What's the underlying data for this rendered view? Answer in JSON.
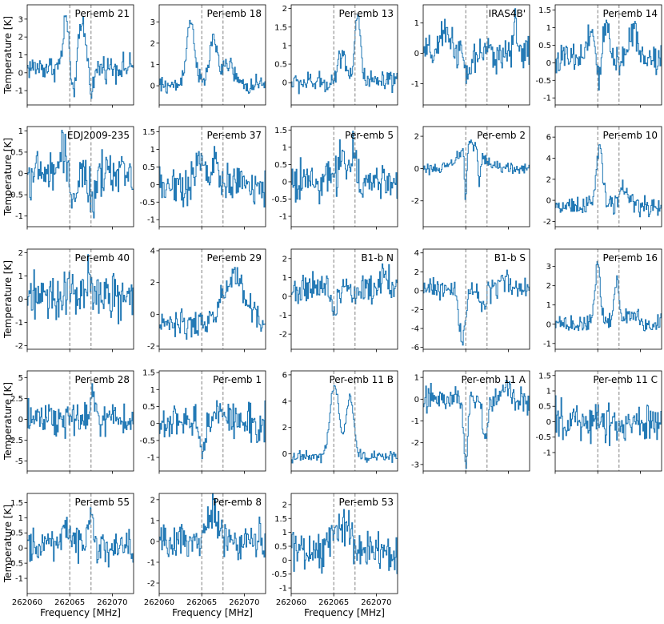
{
  "figure": {
    "xlabel": "Frequency [MHz]",
    "ylabel": "Temperature [K]",
    "line_color": "#1f77b4",
    "marker_color": "#808080"
  },
  "chart_data": [
    {
      "type": "line",
      "title": "Per-emb 21",
      "xlim": [
        262060,
        262072.5
      ],
      "ylim": [
        -1.8,
        3.8
      ],
      "yticks": [
        -1,
        0,
        1,
        2,
        3
      ],
      "markers": [
        262065,
        262067.5
      ],
      "profile": {
        "base": 0.3,
        "noise": 0.5,
        "features": [
          {
            "c": 262064.6,
            "w": 0.35,
            "a": 2.8
          },
          {
            "c": 262065.3,
            "w": 0.25,
            "a": -2.0
          },
          {
            "c": 262066.5,
            "w": 0.4,
            "a": 2.4
          },
          {
            "c": 262067.6,
            "w": 0.3,
            "a": -1.2
          }
        ]
      }
    },
    {
      "type": "line",
      "title": "Per-emb 18",
      "xlim": [
        262060,
        262072.5
      ],
      "ylim": [
        -0.9,
        3.8
      ],
      "yticks": [
        0,
        1,
        2,
        3
      ],
      "markers": [
        262065,
        262067.5
      ],
      "profile": {
        "base": 0.0,
        "noise": 0.3,
        "features": [
          {
            "c": 262063.7,
            "w": 0.5,
            "a": 3.0
          },
          {
            "c": 262066.4,
            "w": 0.5,
            "a": 2.2
          },
          {
            "c": 262068.2,
            "w": 0.6,
            "a": 1.0
          }
        ]
      }
    },
    {
      "type": "line",
      "title": "Per-emb 13",
      "xlim": [
        262060,
        262072.5
      ],
      "ylim": [
        -0.6,
        2.1
      ],
      "yticks": [
        0,
        0.5,
        1,
        1.5,
        2
      ],
      "markers": [
        262065,
        262067.5
      ],
      "profile": {
        "base": 0.0,
        "noise": 0.2,
        "features": [
          {
            "c": 262066.0,
            "w": 0.5,
            "a": 0.8
          },
          {
            "c": 262067.8,
            "w": 0.35,
            "a": 1.8
          }
        ]
      }
    },
    {
      "type": "line",
      "title": "IRAS4B'",
      "xlim": [
        262060,
        262072.5
      ],
      "ylim": [
        -1.7,
        1.6
      ],
      "yticks": [
        -1,
        0,
        1
      ],
      "markers": [
        262065,
        262067.5
      ],
      "profile": {
        "base": 0.0,
        "noise": 0.4,
        "features": [
          {
            "c": 262062.8,
            "w": 0.6,
            "a": 0.7
          },
          {
            "c": 262065.3,
            "w": 0.4,
            "a": -0.8
          },
          {
            "c": 262070.9,
            "w": 0.2,
            "a": 1.2
          }
        ]
      }
    },
    {
      "type": "line",
      "title": "Per-emb 14",
      "xlim": [
        262060,
        262072.5
      ],
      "ylim": [
        -1.2,
        1.65
      ],
      "yticks": [
        -1,
        -0.5,
        0,
        0.5,
        1,
        1.5
      ],
      "markers": [
        262065,
        262067.5
      ],
      "profile": {
        "base": 0.1,
        "noise": 0.35,
        "features": [
          {
            "c": 262064.4,
            "w": 0.4,
            "a": 0.8
          },
          {
            "c": 262065.1,
            "w": 0.2,
            "a": -1.0
          },
          {
            "c": 262066.0,
            "w": 0.4,
            "a": 0.9
          },
          {
            "c": 262069.2,
            "w": 0.5,
            "a": 0.9
          }
        ]
      }
    },
    {
      "type": "line",
      "title": "EDJ2009-235",
      "xlim": [
        262060,
        262072.5
      ],
      "ylim": [
        -1.25,
        1.1
      ],
      "yticks": [
        -1,
        -0.5,
        0,
        0.5,
        1
      ],
      "markers": [
        262065,
        262067.5
      ],
      "profile": {
        "base": 0.0,
        "noise": 0.35,
        "features": [
          {
            "c": 262064.3,
            "w": 0.4,
            "a": 0.6
          },
          {
            "c": 262065.4,
            "w": 0.4,
            "a": -0.6
          },
          {
            "c": 262067.7,
            "w": 0.5,
            "a": -0.6
          }
        ]
      }
    },
    {
      "type": "line",
      "title": "Per-emb 37",
      "xlim": [
        262060,
        262072.5
      ],
      "ylim": [
        -1.2,
        1.65
      ],
      "yticks": [
        -1,
        -0.5,
        0,
        0.5,
        1,
        1.5
      ],
      "markers": [
        262065,
        262067.5
      ],
      "profile": {
        "base": 0.0,
        "noise": 0.4,
        "features": [
          {
            "c": 262064.8,
            "w": 0.5,
            "a": 0.7
          },
          {
            "c": 262066.5,
            "w": 0.3,
            "a": 0.9
          }
        ]
      }
    },
    {
      "type": "line",
      "title": "Per-emb 5",
      "xlim": [
        262060,
        262072.5
      ],
      "ylim": [
        -1.3,
        1.6
      ],
      "yticks": [
        -1,
        -0.5,
        0,
        0.5,
        1,
        1.5
      ],
      "markers": [
        262065,
        262067.5
      ],
      "profile": {
        "base": 0.0,
        "noise": 0.4,
        "features": [
          {
            "c": 262066.0,
            "w": 0.5,
            "a": 0.8
          },
          {
            "c": 262067.3,
            "w": 0.3,
            "a": 0.9
          }
        ]
      }
    },
    {
      "type": "line",
      "title": "Per-emb 2",
      "xlim": [
        262060,
        262072.5
      ],
      "ylim": [
        -3.6,
        2.6
      ],
      "yticks": [
        -2,
        0,
        2
      ],
      "markers": [
        262065,
        262067.5
      ],
      "profile": {
        "base": 0.0,
        "noise": 0.25,
        "features": [
          {
            "c": 262065.6,
            "w": 1.2,
            "a": 1.6
          },
          {
            "c": 262065.0,
            "w": 0.12,
            "a": -3.5
          },
          {
            "c": 262066.6,
            "w": 0.15,
            "a": -2.2
          }
        ]
      }
    },
    {
      "type": "line",
      "title": "Per-emb 10",
      "xlim": [
        262060,
        262072.5
      ],
      "ylim": [
        -2.5,
        7.0
      ],
      "yticks": [
        -2,
        0,
        2,
        4,
        6
      ],
      "markers": [
        262065,
        262067.5
      ],
      "profile": {
        "base": -0.5,
        "noise": 0.6,
        "features": [
          {
            "c": 262065.2,
            "w": 0.35,
            "a": 5.5
          },
          {
            "c": 262068.0,
            "w": 0.6,
            "a": 1.4
          }
        ]
      }
    },
    {
      "type": "line",
      "title": "Per-emb 40",
      "xlim": [
        262060,
        262072.5
      ],
      "ylim": [
        -2.15,
        2.15
      ],
      "yticks": [
        -2,
        -1,
        0,
        1,
        2
      ],
      "markers": [
        262065,
        262067.5
      ],
      "profile": {
        "base": 0.0,
        "noise": 0.7,
        "features": [
          {
            "c": 262064.9,
            "w": 0.3,
            "a": 1.0
          },
          {
            "c": 262067.4,
            "w": 0.3,
            "a": 1.0
          }
        ]
      }
    },
    {
      "type": "line",
      "title": "Per-emb 29",
      "xlim": [
        262060,
        262072.5
      ],
      "ylim": [
        -2.2,
        4.1
      ],
      "yticks": [
        -2,
        0,
        2,
        4
      ],
      "markers": [
        262065,
        262067.5
      ],
      "profile": {
        "base": -0.6,
        "noise": 0.6,
        "features": [
          {
            "c": 262068.8,
            "w": 1.2,
            "a": 3.0
          }
        ]
      }
    },
    {
      "type": "line",
      "title": "B1-b N",
      "xlim": [
        262060,
        262072.5
      ],
      "ylim": [
        -2.8,
        2.5
      ],
      "yticks": [
        -2,
        -1,
        0,
        1,
        2
      ],
      "markers": [
        262065,
        262067.5
      ],
      "profile": {
        "base": 0.4,
        "noise": 0.6,
        "features": [
          {
            "c": 262065.1,
            "w": 0.3,
            "a": -1.2
          },
          {
            "c": 262071.0,
            "w": 0.4,
            "a": 1.0
          }
        ]
      }
    },
    {
      "type": "line",
      "title": "B1-b S",
      "xlim": [
        262060,
        262072.5
      ],
      "ylim": [
        -6.2,
        4.4
      ],
      "yticks": [
        -6,
        -4,
        -2,
        0,
        2,
        4
      ],
      "markers": [
        262065,
        262067.5
      ],
      "profile": {
        "base": 0.2,
        "noise": 0.8,
        "features": [
          {
            "c": 262064.6,
            "w": 0.4,
            "a": -5.5
          },
          {
            "c": 262067.0,
            "w": 0.4,
            "a": -2.0
          },
          {
            "c": 262069.5,
            "w": 0.4,
            "a": 1.2
          }
        ]
      }
    },
    {
      "type": "line",
      "title": "Per-emb 16",
      "xlim": [
        262060,
        262072.5
      ],
      "ylim": [
        -1.3,
        3.9
      ],
      "yticks": [
        -1,
        0,
        1,
        2,
        3
      ],
      "markers": [
        262065,
        262067.5
      ],
      "profile": {
        "base": 0.0,
        "noise": 0.3,
        "features": [
          {
            "c": 262065.0,
            "w": 0.3,
            "a": 3.3
          },
          {
            "c": 262067.2,
            "w": 0.3,
            "a": 2.3
          },
          {
            "c": 262069.0,
            "w": 0.6,
            "a": 0.6
          }
        ]
      }
    },
    {
      "type": "line",
      "title": "Per-emb 28",
      "xlim": [
        262060,
        262072.5
      ],
      "ylim": [
        -6.2,
        5.8
      ],
      "yticks": [
        -5,
        -2.5,
        0,
        2.5,
        5
      ],
      "markers": [
        262065,
        262067.5
      ],
      "profile": {
        "base": 0.0,
        "noise": 1.5,
        "features": [
          {
            "c": 262067.8,
            "w": 0.3,
            "a": 3.5
          }
        ]
      }
    },
    {
      "type": "line",
      "title": "Per-emb 1",
      "xlim": [
        262060,
        262072.5
      ],
      "ylim": [
        -1.4,
        1.55
      ],
      "yticks": [
        -1,
        -0.5,
        0,
        0.5,
        1,
        1.5
      ],
      "markers": [
        262065,
        262067.5
      ],
      "profile": {
        "base": 0.0,
        "noise": 0.4,
        "features": [
          {
            "c": 262065.1,
            "w": 0.3,
            "a": -1.0
          },
          {
            "c": 262067.0,
            "w": 0.4,
            "a": 0.6
          }
        ]
      }
    },
    {
      "type": "line",
      "title": "Per-emb 11 B",
      "xlim": [
        262060,
        262072.5
      ],
      "ylim": [
        -1.3,
        6.3
      ],
      "yticks": [
        0,
        2,
        4,
        6
      ],
      "markers": [
        262065,
        262067.5
      ],
      "profile": {
        "base": -0.2,
        "noise": 0.3,
        "features": [
          {
            "c": 262065.1,
            "w": 0.5,
            "a": 5.6
          },
          {
            "c": 262066.9,
            "w": 0.45,
            "a": 4.6
          }
        ]
      }
    },
    {
      "type": "line",
      "title": "Per-emb 11 A",
      "xlim": [
        262060,
        262072.5
      ],
      "ylim": [
        -3.3,
        1.3
      ],
      "yticks": [
        -3,
        -2,
        -1,
        0,
        1
      ],
      "markers": [
        262065,
        262067.5
      ],
      "profile": {
        "base": 0.0,
        "noise": 0.4,
        "features": [
          {
            "c": 262065.0,
            "w": 0.25,
            "a": -2.8
          },
          {
            "c": 262067.3,
            "w": 0.3,
            "a": -1.8
          },
          {
            "c": 262070.0,
            "w": 0.5,
            "a": 0.4
          }
        ]
      }
    },
    {
      "type": "line",
      "title": "Per-emb 11 C",
      "xlim": [
        262060,
        262072.5
      ],
      "ylim": [
        -1.6,
        1.65
      ],
      "yticks": [
        -1,
        -0.5,
        0,
        0.5,
        1,
        1.5
      ],
      "markers": [
        262065,
        262067.5
      ],
      "profile": {
        "base": 0.0,
        "noise": 0.45,
        "features": []
      }
    },
    {
      "type": "line",
      "title": "Per-emb 55",
      "xlim": [
        262060,
        262072.5
      ],
      "ylim": [
        -1.5,
        1.8
      ],
      "yticks": [
        -1,
        -0.5,
        0,
        0.5,
        1,
        1.5
      ],
      "markers": [
        262065,
        262067.5
      ],
      "profile": {
        "base": 0.1,
        "noise": 0.4,
        "features": [
          {
            "c": 262064.6,
            "w": 0.4,
            "a": 0.6
          },
          {
            "c": 262067.5,
            "w": 0.3,
            "a": 1.0
          }
        ]
      }
    },
    {
      "type": "line",
      "title": "Per-emb 8",
      "xlim": [
        262060,
        262072.5
      ],
      "ylim": [
        -2.5,
        2.3
      ],
      "yticks": [
        -2,
        -1,
        0,
        1,
        2
      ],
      "markers": [
        262065,
        262067.5
      ],
      "profile": {
        "base": 0.0,
        "noise": 0.6,
        "features": [
          {
            "c": 262066.2,
            "w": 0.7,
            "a": 1.4
          }
        ]
      }
    },
    {
      "type": "line",
      "title": "Per-emb 53",
      "xlim": [
        262060,
        262072.5
      ],
      "ylim": [
        -1.2,
        2.4
      ],
      "yticks": [
        -1,
        -0.5,
        0,
        0.5,
        1,
        1.5,
        2
      ],
      "markers": [
        262065,
        262067.5
      ],
      "profile": {
        "base": 0.3,
        "noise": 0.5,
        "features": [
          {
            "c": 262065.8,
            "w": 1.0,
            "a": 1.0
          }
        ]
      }
    }
  ],
  "xticks": [
    262060,
    262065,
    262070
  ]
}
